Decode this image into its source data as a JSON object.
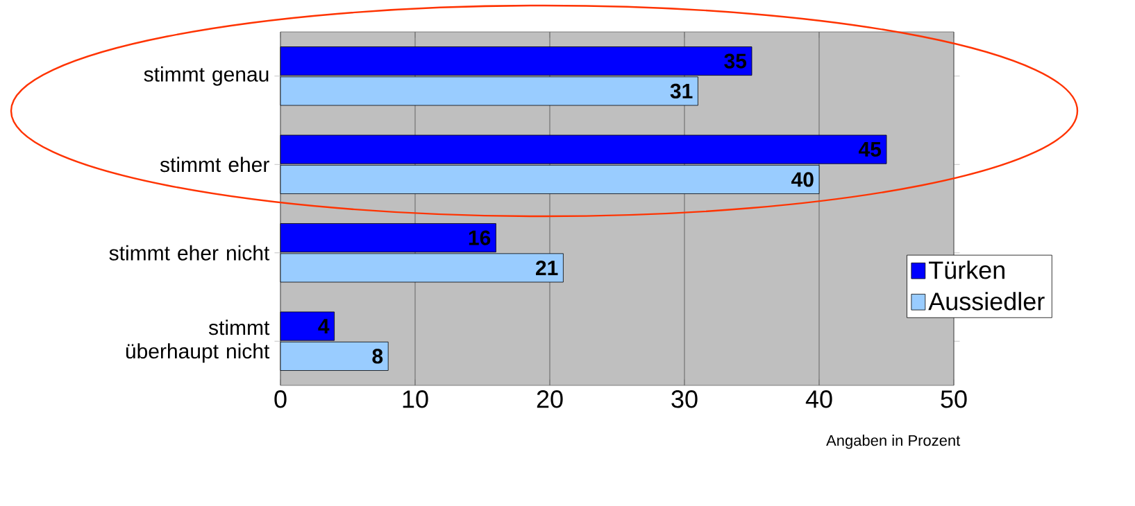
{
  "chart_data": {
    "type": "bar",
    "orientation": "horizontal",
    "xlabel": "Angaben in Prozent",
    "categories": [
      "stimmt genau",
      "stimmt eher",
      "stimmt eher nicht",
      "stimmt überhaupt nicht"
    ],
    "series": [
      {
        "name": "Türken",
        "color": "#0000ff",
        "values": [
          35,
          45,
          16,
          4
        ]
      },
      {
        "name": "Aussiedler",
        "color": "#99ccff",
        "values": [
          31,
          40,
          21,
          8
        ]
      }
    ],
    "xlim": [
      0,
      50
    ],
    "xticks": [
      0,
      10,
      20,
      30,
      40,
      50
    ],
    "grid": "x",
    "legend": "right",
    "data_labels": true
  }
}
